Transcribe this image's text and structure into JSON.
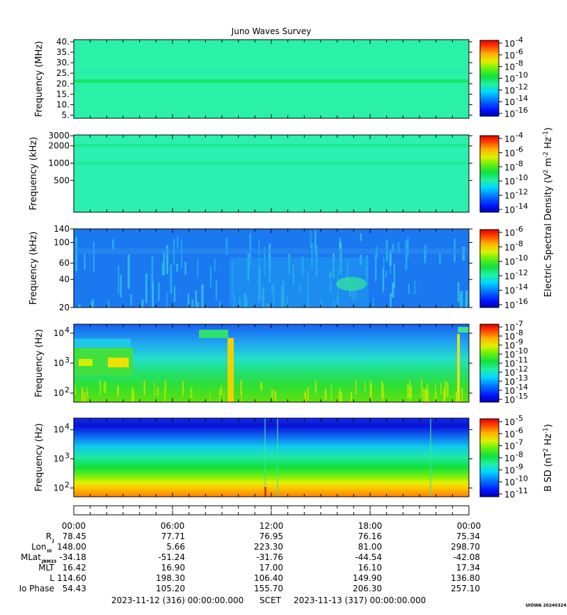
{
  "chart_data": {
    "type": "heatmap",
    "title": "Juno Waves Survey",
    "panels": [
      {
        "id": "p1",
        "ylabel": "Frequency (MHz)",
        "yscale": "linear",
        "ylim": [
          3.5,
          41
        ],
        "ytick_values": [
          5,
          10,
          15,
          20,
          25,
          30,
          35,
          40
        ],
        "ytick_labels": [
          "5.",
          "10.",
          "15.",
          "20.",
          "25.",
          "30.",
          "35.",
          "40."
        ],
        "colorbar_exponents": [
          "-4",
          "-6",
          "-8",
          "-10",
          "-12",
          "-14",
          "-16"
        ],
        "colorbar_units": "electric",
        "background": "#2bf0a8",
        "bands": [
          {
            "from": 20.5,
            "to": 22.0,
            "color": "#14e660"
          },
          {
            "from": 27.5,
            "to": 28.2,
            "color": "#30f4b8"
          }
        ]
      },
      {
        "id": "p2",
        "ylabel": "Frequency (kHz)",
        "yscale": "log",
        "ylim": [
          140,
          3100
        ],
        "ytick_values": [
          500,
          1000,
          2000,
          3000
        ],
        "ytick_labels": [
          "500",
          "1000",
          "2000",
          "3000"
        ],
        "colorbar_exponents": [
          "-4",
          "-6",
          "-8",
          "-10",
          "-12",
          "-14"
        ],
        "colorbar_units": "electric",
        "background": "#2bf0b0",
        "bands": [
          {
            "from": 1900,
            "to": 2150,
            "color": "#1fe890"
          },
          {
            "from": 950,
            "to": 1080,
            "color": "#22ec9c"
          }
        ]
      },
      {
        "id": "p3",
        "ylabel": "Frequency (kHz)",
        "yscale": "log",
        "ylim": [
          20,
          140
        ],
        "ytick_values": [
          20,
          40,
          60,
          100,
          140
        ],
        "ytick_labels": [
          "20",
          "40",
          "60",
          "100",
          "140"
        ],
        "colorbar_exponents": [
          "-6",
          "-8",
          "-10",
          "-12",
          "-14",
          "-16"
        ],
        "colorbar_units": "electric",
        "background": "#1a78f0"
      },
      {
        "id": "p4",
        "ylabel": "Frequency (Hz)",
        "yscale": "log",
        "ylim": [
          50,
          20000
        ],
        "ytick_values": [
          100,
          1000,
          10000
        ],
        "ytick_labels": [
          "10",
          "10",
          "10"
        ],
        "ytick_exponents": [
          "2",
          "3",
          "4"
        ],
        "colorbar_exponents": [
          "-7",
          "-8",
          "-9",
          "-10",
          "-11",
          "-12",
          "-13",
          "-14",
          "-15"
        ],
        "colorbar_units": "electric"
      },
      {
        "id": "p5",
        "ylabel": "Frequency (Hz)",
        "yscale": "log",
        "ylim": [
          50,
          25000
        ],
        "ytick_values": [
          100,
          1000,
          10000
        ],
        "ytick_labels": [
          "10",
          "10",
          "10"
        ],
        "ytick_exponents": [
          "2",
          "3",
          "4"
        ],
        "colorbar_exponents": [
          "-5",
          "-6",
          "-7",
          "-8",
          "-9",
          "-10",
          "-11"
        ],
        "colorbar_units": "magnetic"
      }
    ],
    "colorbar_label_electric": "Electric Spectral Density (V",
    "colorbar_label_magnetic": "B SD (nT",
    "colorbar_label_electric_parts": [
      "Electric Spectral Density (V",
      "2",
      " m",
      "-2",
      " Hz",
      "-1",
      ")"
    ],
    "colorbar_label_magnetic_parts": [
      "B SD (nT",
      "2",
      " Hz",
      "-1",
      ")"
    ],
    "x_tick_labels": [
      "00:00",
      "06:00",
      "12:00",
      "18:00",
      "00:00"
    ],
    "ephemeris_rows": [
      {
        "label": "R",
        "sub": "J",
        "values": [
          "78.45",
          "77.71",
          "76.95",
          "76.16",
          "75.34"
        ]
      },
      {
        "label": "Lon",
        "sub": "III",
        "values": [
          "148.00",
          "5.66",
          "223.30",
          "81.00",
          "298.70"
        ]
      },
      {
        "label": "MLat",
        "sub": "JRM33",
        "values": [
          "-34.18",
          "-51.24",
          "-31.76",
          "-44.54",
          "-42.08"
        ]
      },
      {
        "label": "MLT",
        "sub": "",
        "values": [
          "16.42",
          "16.90",
          "17.00",
          "16.10",
          "17.34"
        ]
      },
      {
        "label": "L",
        "sub": "",
        "values": [
          "114.60",
          "198.30",
          "106.40",
          "149.90",
          "136.80"
        ]
      },
      {
        "label": "Io Phase",
        "sub": "",
        "values": [
          "54.43",
          "105.20",
          "155.70",
          "206.30",
          "257.10"
        ]
      }
    ],
    "scet_start": "2023-11-12 (316) 00:00:00.000",
    "scet_label": "SCET",
    "scet_end": "2023-11-13 (317) 00:00:00.000",
    "watermark": "UIOWA 20240324"
  }
}
